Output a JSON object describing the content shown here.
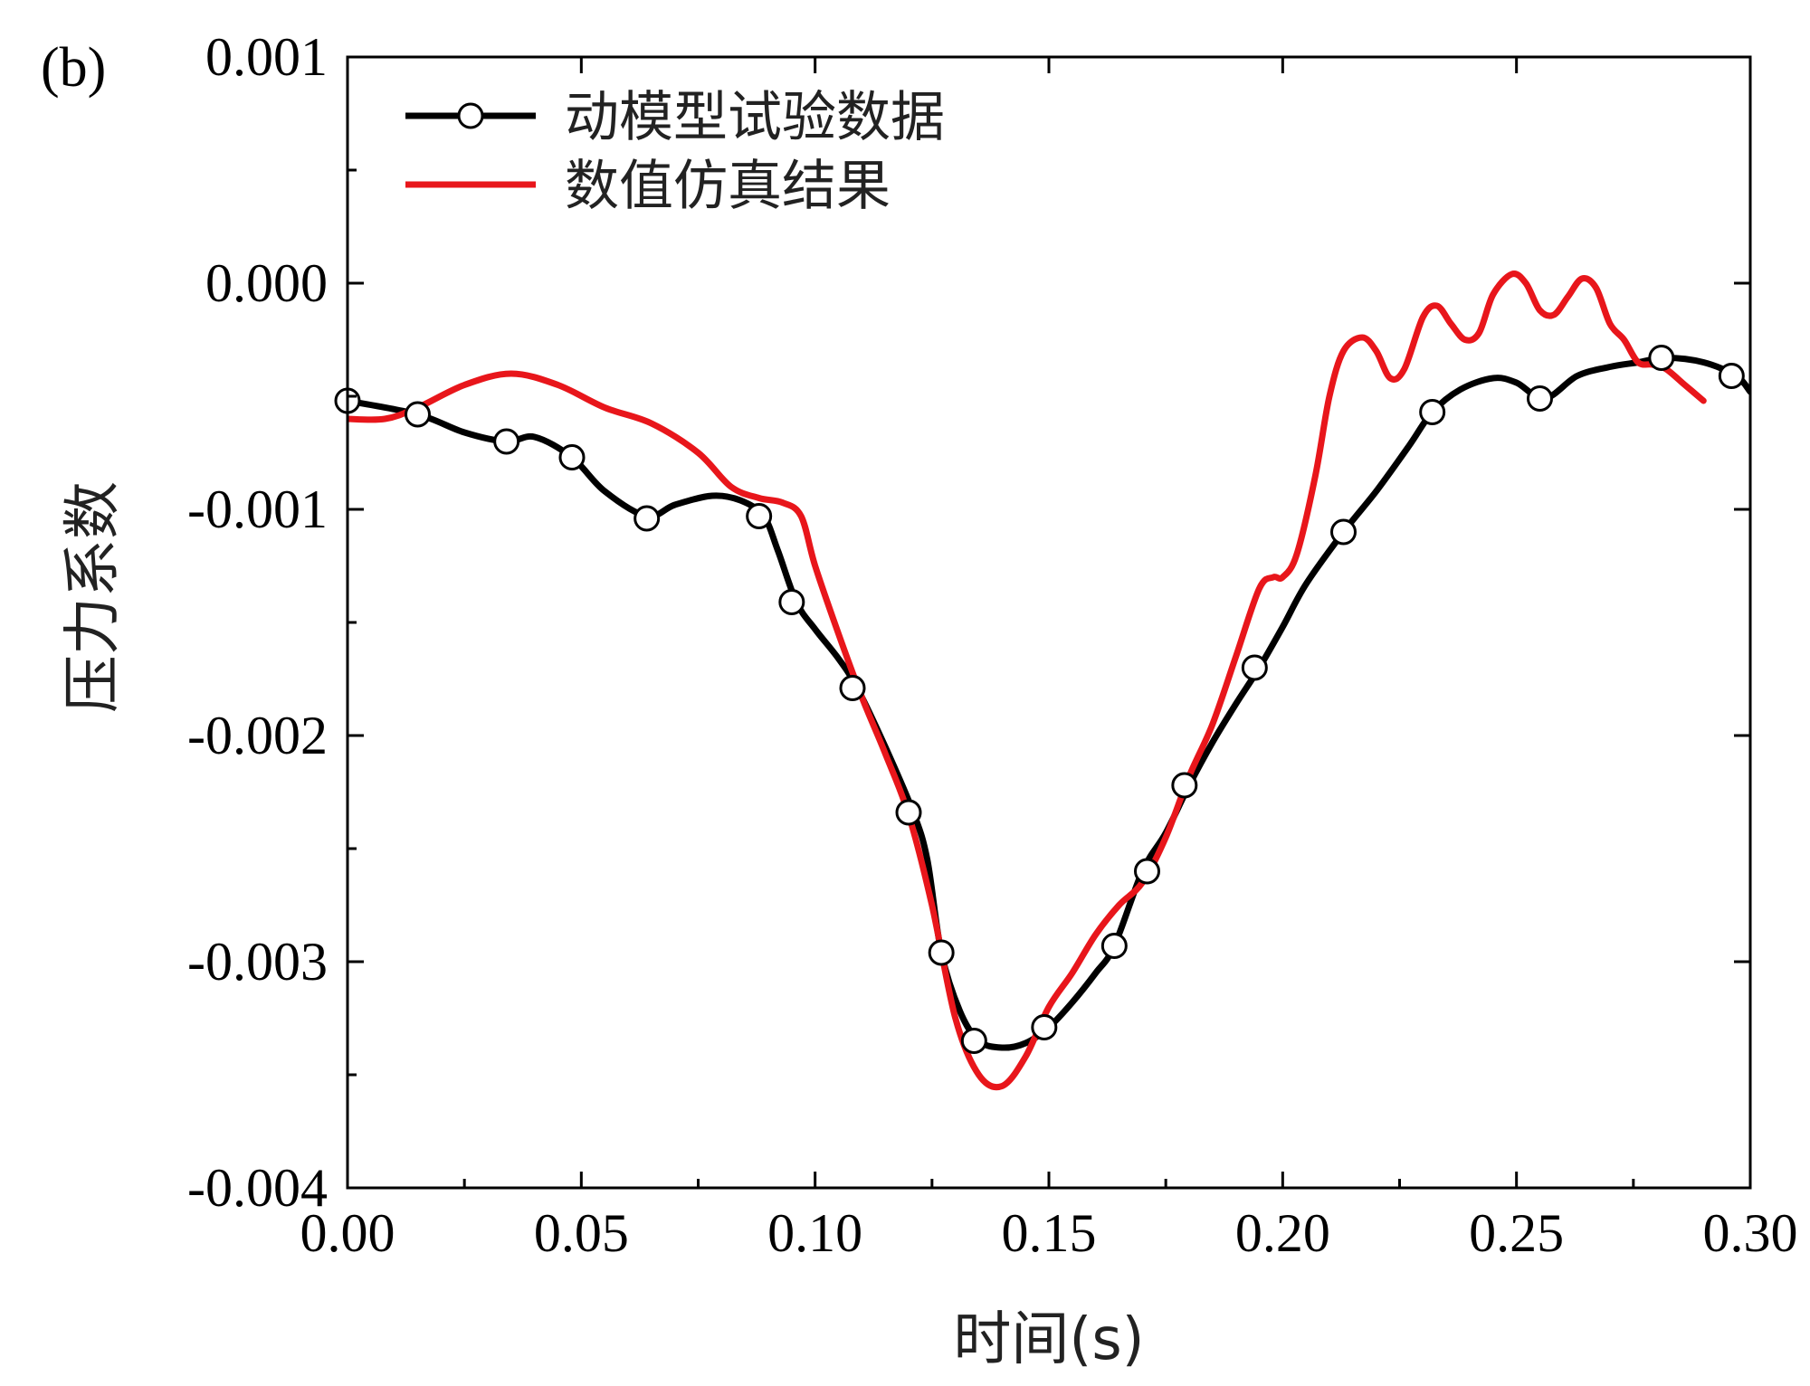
{
  "panel_label": "(b)",
  "chart_data": {
    "type": "line",
    "xlabel": "时间(s)",
    "ylabel": "压力系数",
    "xlim": [
      0,
      0.3
    ],
    "ylim": [
      -0.004,
      0.001
    ],
    "xticks": [
      "0.00",
      "0.05",
      "0.10",
      "0.15",
      "0.20",
      "0.25",
      "0.30"
    ],
    "yticks": [
      "0.001",
      "0.000",
      "-0.001",
      "-0.002",
      "-0.003",
      "-0.004"
    ],
    "grid": false,
    "legend_position": "top-left",
    "series": [
      {
        "name": "动模型试验数据",
        "color": "#000000",
        "marker": "open-circle",
        "x": [
          0.0,
          0.015,
          0.025,
          0.034,
          0.04,
          0.048,
          0.055,
          0.064,
          0.07,
          0.078,
          0.084,
          0.089,
          0.092,
          0.096,
          0.1,
          0.105,
          0.109,
          0.115,
          0.121,
          0.124,
          0.127,
          0.131,
          0.135,
          0.14,
          0.145,
          0.15,
          0.155,
          0.16,
          0.164,
          0.17,
          0.175,
          0.18,
          0.185,
          0.19,
          0.195,
          0.2,
          0.205,
          0.213,
          0.22,
          0.227,
          0.232,
          0.238,
          0.245,
          0.25,
          0.256,
          0.263,
          0.27,
          0.276,
          0.282,
          0.29,
          0.297,
          0.3
        ],
        "y": [
          -0.00052,
          -0.00058,
          -0.00066,
          -0.0007,
          -0.00068,
          -0.00077,
          -0.00092,
          -0.00103,
          -0.00098,
          -0.00094,
          -0.00096,
          -0.00103,
          -0.00118,
          -0.00141,
          -0.00153,
          -0.00166,
          -0.00179,
          -0.00205,
          -0.00234,
          -0.00255,
          -0.00296,
          -0.00322,
          -0.00335,
          -0.00338,
          -0.00336,
          -0.00329,
          -0.00318,
          -0.00305,
          -0.00293,
          -0.0026,
          -0.00243,
          -0.00222,
          -0.00203,
          -0.00186,
          -0.0017,
          -0.00152,
          -0.00133,
          -0.0011,
          -0.00092,
          -0.00072,
          -0.00057,
          -0.00047,
          -0.00042,
          -0.00044,
          -0.00051,
          -0.00041,
          -0.00037,
          -0.00035,
          -0.00033,
          -0.00035,
          -0.00041,
          -0.00048
        ],
        "markers_x": [
          0.0,
          0.015,
          0.034,
          0.048,
          0.064,
          0.088,
          0.095,
          0.108,
          0.12,
          0.127,
          0.134,
          0.149,
          0.164,
          0.171,
          0.179,
          0.194,
          0.213,
          0.232,
          0.255,
          0.281,
          0.296
        ],
        "markers_y": [
          -0.00052,
          -0.00058,
          -0.0007,
          -0.00077,
          -0.00104,
          -0.00103,
          -0.00141,
          -0.00179,
          -0.00234,
          -0.00296,
          -0.00335,
          -0.00329,
          -0.00293,
          -0.0026,
          -0.00222,
          -0.0017,
          -0.0011,
          -0.00057,
          -0.00051,
          -0.00033,
          -0.00041
        ]
      },
      {
        "name": "数值仿真结果",
        "color": "#e8161b",
        "marker": "none",
        "x": [
          0.0,
          0.008,
          0.015,
          0.025,
          0.035,
          0.045,
          0.055,
          0.065,
          0.075,
          0.082,
          0.088,
          0.093,
          0.097,
          0.1,
          0.105,
          0.11,
          0.115,
          0.12,
          0.125,
          0.13,
          0.135,
          0.14,
          0.145,
          0.15,
          0.155,
          0.16,
          0.165,
          0.17,
          0.175,
          0.18,
          0.185,
          0.19,
          0.195,
          0.198,
          0.2,
          0.203,
          0.207,
          0.21,
          0.213,
          0.217,
          0.22,
          0.223,
          0.226,
          0.23,
          0.233,
          0.236,
          0.239,
          0.242,
          0.245,
          0.249,
          0.252,
          0.255,
          0.258,
          0.261,
          0.264,
          0.267,
          0.27,
          0.273,
          0.276,
          0.279,
          0.282,
          0.286,
          0.29
        ],
        "y": [
          -0.0006,
          -0.0006,
          -0.00055,
          -0.00045,
          -0.0004,
          -0.00045,
          -0.00055,
          -0.00062,
          -0.00075,
          -0.0009,
          -0.00095,
          -0.00097,
          -0.00103,
          -0.00125,
          -0.00155,
          -0.00183,
          -0.00208,
          -0.00235,
          -0.00275,
          -0.00325,
          -0.0035,
          -0.00355,
          -0.00342,
          -0.0032,
          -0.00305,
          -0.00288,
          -0.00275,
          -0.00265,
          -0.00245,
          -0.00218,
          -0.00195,
          -0.00165,
          -0.00135,
          -0.0013,
          -0.0013,
          -0.0012,
          -0.00085,
          -0.0005,
          -0.0003,
          -0.00024,
          -0.0003,
          -0.00042,
          -0.00038,
          -0.00015,
          -0.0001,
          -0.00018,
          -0.00025,
          -0.00022,
          -5e-05,
          4e-05,
          0.0,
          -0.00012,
          -0.00014,
          -6e-05,
          2e-05,
          -2e-05,
          -0.00018,
          -0.00025,
          -0.00035,
          -0.00036,
          -0.00038,
          -0.00045,
          -0.00052
        ]
      }
    ]
  }
}
